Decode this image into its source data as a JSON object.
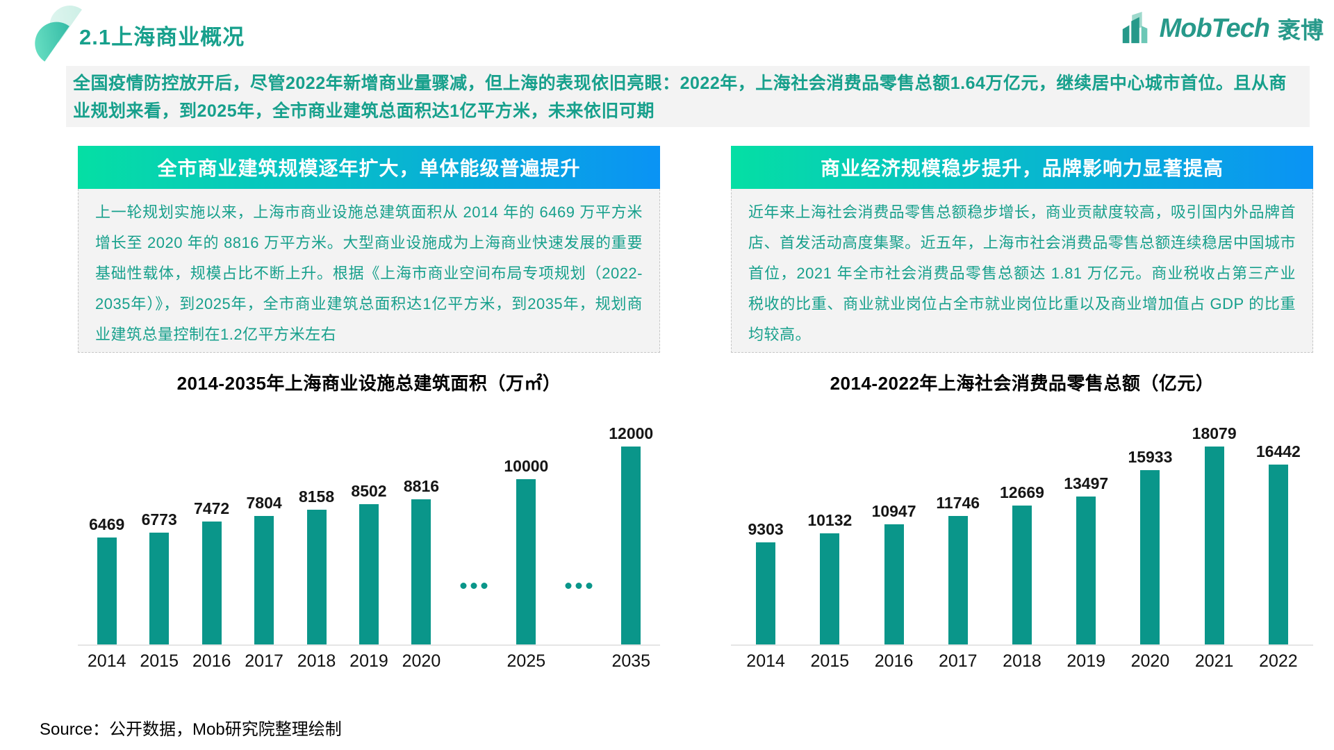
{
  "colors": {
    "accent_teal": "#17a08c",
    "logo_teal": "#27998a",
    "bar_teal": "#0a968a",
    "gradient_start": "#05dfa4",
    "gradient_end": "#0a93f5"
  },
  "header": {
    "section_title": "2.1上海商业概况",
    "logo_text": "MobTech",
    "logo_suffix": "袤博"
  },
  "intro": {
    "text": "全国疫情防控放开后，尽管2022年新增商业量骤减，但上海的表现依旧亮眼：2022年，上海社会消费品零售总额1.64万亿元，继续居中心城市首位。且从商业规划来看，到2025年，全市商业建筑总面积达1亿平方米，未来依旧可期"
  },
  "panels": [
    {
      "header": "全市商业建筑规模逐年扩大，单体能级普遍提升",
      "body": "上一轮规划实施以来，上海市商业设施总建筑面积从 2014 年的 6469 万平方米增长至 2020 年的 8816 万平方米。大型商业设施成为上海商业快速发展的重要基础性载体，规模占比不断上升。根据《上海市商业空间布局专项规划（2022-2035年）》，到2025年，全市商业建筑总面积达1亿平方米，到2035年，规划商业建筑总量控制在1.2亿平方米左右"
    },
    {
      "header": "商业经济规模稳步提升，品牌影响力显著提高",
      "body": "近年来上海社会消费品零售总额稳步增长，商业贡献度较高，吸引国内外品牌首店、首发活动高度集聚。近五年，上海市社会消费品零售总额连续稳居中国城市首位，2021 年全市社会消费品零售总额达 1.81 万亿元。商业税收占第三产业税收的比重、商业就业岗位占全市就业岗位比重以及商业增加值占 GDP 的比重均较高。"
    }
  ],
  "chart_data": [
    {
      "type": "bar",
      "title": "2014-2035年上海商业设施总建筑面积（万㎡）",
      "categories": [
        "2014",
        "2015",
        "2016",
        "2017",
        "2018",
        "2019",
        "2020",
        "2025",
        "2035"
      ],
      "values": [
        6469,
        6773,
        7472,
        7804,
        8158,
        8502,
        8816,
        10000,
        12000
      ],
      "gap_dots_after_indices": [
        6,
        7
      ],
      "bar_color": "#0a968a",
      "xlabel": "",
      "ylabel": "万㎡",
      "ylim": [
        0,
        12000
      ],
      "grid": false,
      "value_labels": true,
      "legend": "none"
    },
    {
      "type": "bar",
      "title": "2014-2022年上海社会消费品零售总额（亿元）",
      "categories": [
        "2014",
        "2015",
        "2016",
        "2017",
        "2018",
        "2019",
        "2020",
        "2021",
        "2022"
      ],
      "values": [
        9303,
        10132,
        10947,
        11746,
        12669,
        13497,
        15933,
        18079,
        16442
      ],
      "gap_dots_after_indices": [],
      "bar_color": "#0a968a",
      "xlabel": "",
      "ylabel": "亿元",
      "ylim": [
        0,
        18079
      ],
      "grid": false,
      "value_labels": true,
      "legend": "none"
    }
  ],
  "footer": {
    "source": "Source：公开数据，Mob研究院整理绘制"
  }
}
